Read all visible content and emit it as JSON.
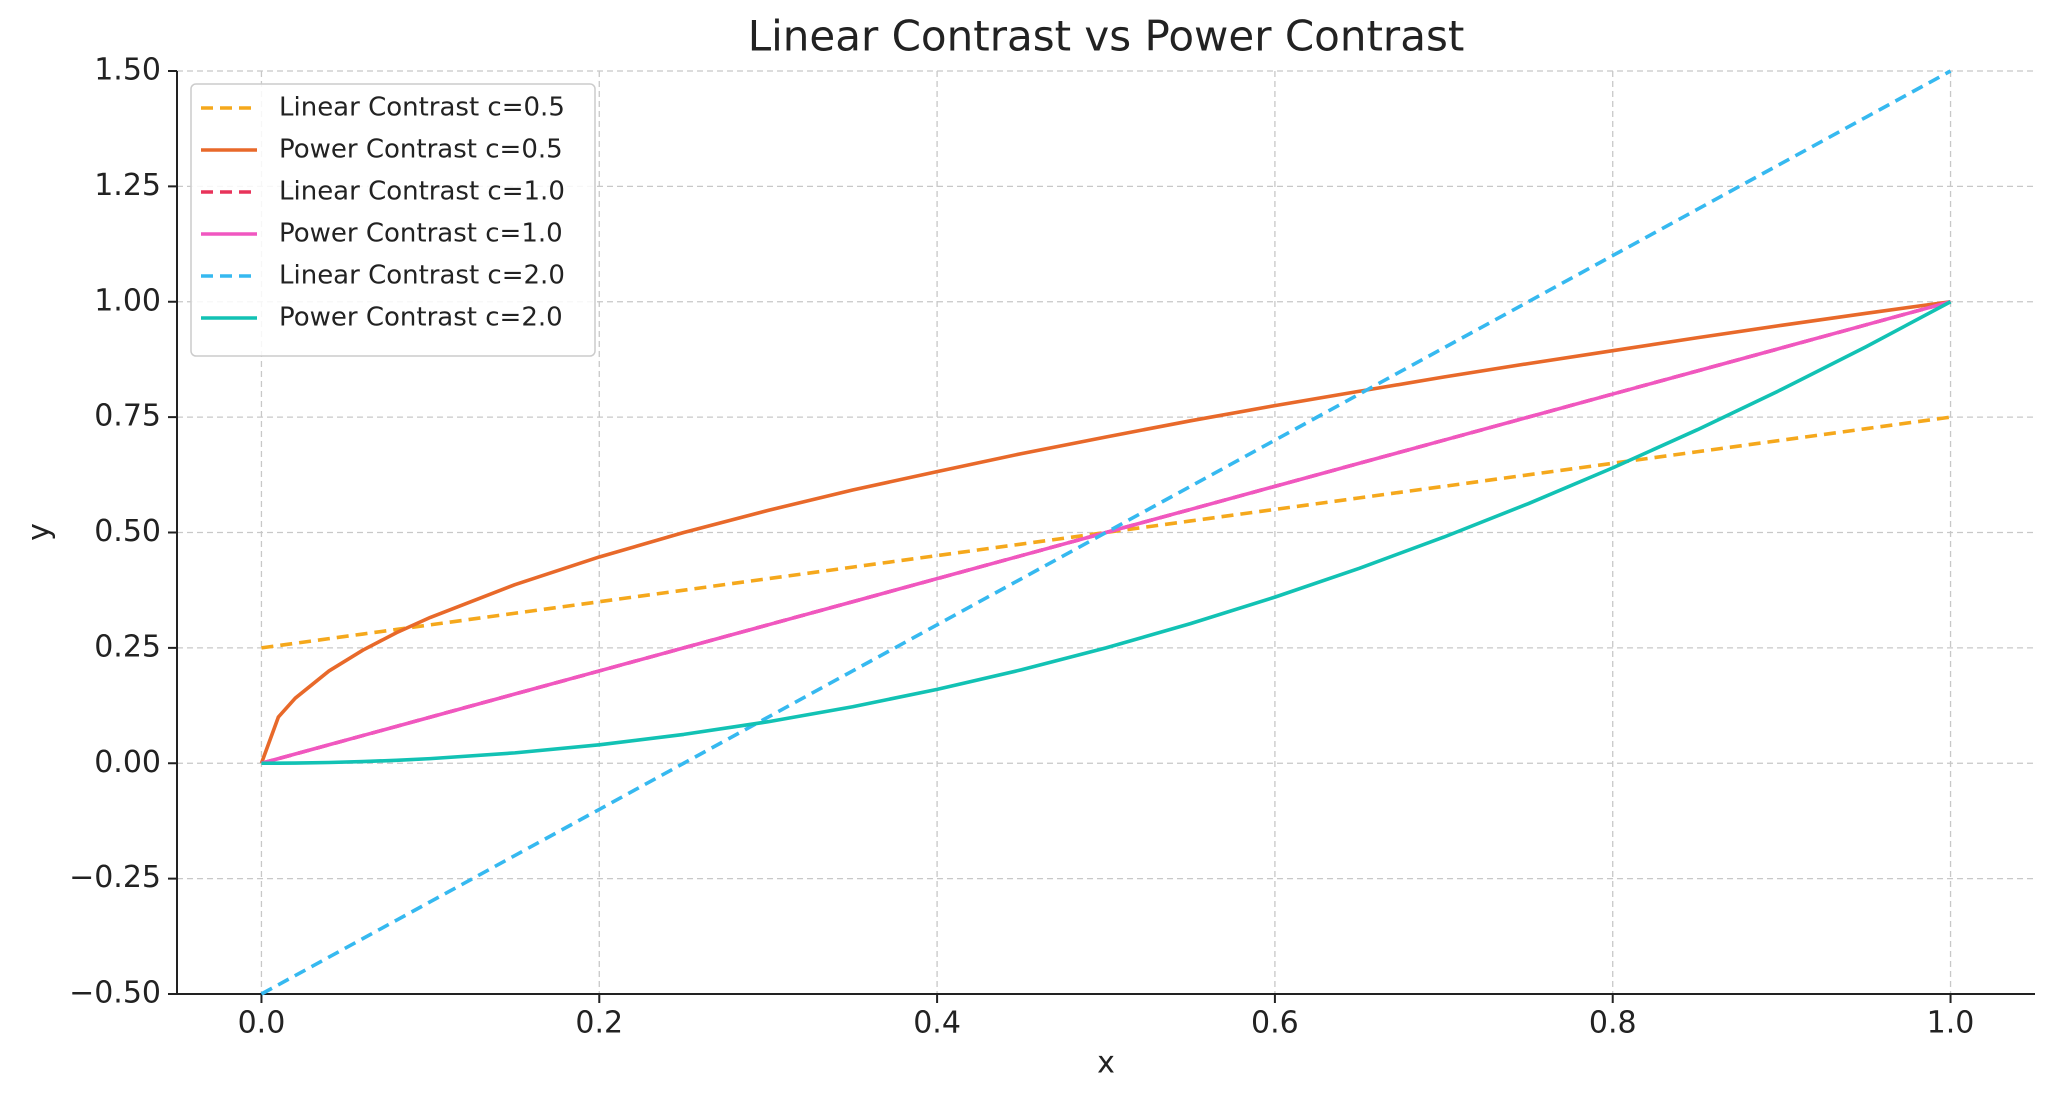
{
  "chart_data": {
    "type": "line",
    "title": "Linear Contrast vs Power Contrast",
    "x_label": "x",
    "y_label": "y",
    "x": [
      0,
      0.01,
      0.02,
      0.04,
      0.06,
      0.08,
      0.1,
      0.15,
      0.2,
      0.25,
      0.3,
      0.35,
      0.4,
      0.45,
      0.5,
      0.55,
      0.6,
      0.65,
      0.7,
      0.75,
      0.8,
      0.85,
      0.9,
      0.95,
      1.0
    ],
    "series": [
      {
        "name": "Linear Contrast c=0.5",
        "color": "#f5a81c",
        "linestyle": "dashed",
        "values": [
          0.25,
          0.255,
          0.26,
          0.27,
          0.28,
          0.29,
          0.3,
          0.325,
          0.35,
          0.375,
          0.4,
          0.425,
          0.45,
          0.475,
          0.5,
          0.525,
          0.55,
          0.575,
          0.6,
          0.625,
          0.65,
          0.675,
          0.7,
          0.725,
          0.75
        ]
      },
      {
        "name": "Power Contrast c=0.5",
        "color": "#e8692a",
        "linestyle": "solid",
        "values": [
          0,
          0.1,
          0.141,
          0.2,
          0.245,
          0.283,
          0.316,
          0.387,
          0.447,
          0.5,
          0.548,
          0.592,
          0.632,
          0.671,
          0.707,
          0.742,
          0.775,
          0.806,
          0.837,
          0.866,
          0.894,
          0.922,
          0.949,
          0.975,
          1
        ]
      },
      {
        "name": "Linear Contrast c=1.0",
        "color": "#e8335a",
        "linestyle": "dashed",
        "values": [
          0,
          0.01,
          0.02,
          0.04,
          0.06,
          0.08,
          0.1,
          0.15,
          0.2,
          0.25,
          0.3,
          0.35,
          0.4,
          0.45,
          0.5,
          0.55,
          0.6,
          0.65,
          0.7,
          0.75,
          0.8,
          0.85,
          0.9,
          0.95,
          1.0
        ]
      },
      {
        "name": "Power Contrast c=1.0",
        "color": "#f057c0",
        "linestyle": "solid",
        "values": [
          0,
          0.01,
          0.02,
          0.04,
          0.06,
          0.08,
          0.1,
          0.15,
          0.2,
          0.25,
          0.3,
          0.35,
          0.4,
          0.45,
          0.5,
          0.55,
          0.6,
          0.65,
          0.7,
          0.75,
          0.8,
          0.85,
          0.9,
          0.95,
          1.0
        ]
      },
      {
        "name": "Linear Contrast c=2.0",
        "color": "#36b9f0",
        "linestyle": "dashed",
        "values": [
          -0.5,
          -0.48,
          -0.46,
          -0.42,
          -0.38,
          -0.34,
          -0.3,
          -0.2,
          -0.1,
          0,
          0.1,
          0.2,
          0.3,
          0.4,
          0.5,
          0.6,
          0.7,
          0.8,
          0.9,
          1.0,
          1.1,
          1.2,
          1.3,
          1.4,
          1.5
        ]
      },
      {
        "name": "Power Contrast c=2.0",
        "color": "#12c2b4",
        "linestyle": "solid",
        "values": [
          0,
          0.0001,
          0.0004,
          0.0016,
          0.0036,
          0.0064,
          0.01,
          0.0225,
          0.04,
          0.0625,
          0.09,
          0.1225,
          0.16,
          0.2025,
          0.25,
          0.3025,
          0.36,
          0.4225,
          0.49,
          0.5625,
          0.64,
          0.7225,
          0.81,
          0.9025,
          1
        ]
      }
    ],
    "xlim": [
      -0.05,
      1.05
    ],
    "xticks": [
      {
        "value": 0,
        "label": "0.0"
      },
      {
        "value": 0.2,
        "label": "0.2"
      },
      {
        "value": 0.4,
        "label": "0.4"
      },
      {
        "value": 0.6,
        "label": "0.6"
      },
      {
        "value": 0.8,
        "label": "0.8"
      },
      {
        "value": 1,
        "label": "1.0"
      }
    ],
    "ylim": [
      -0.5,
      1.5
    ],
    "yticks": [
      {
        "value": -0.5,
        "label": "−0.50"
      },
      {
        "value": -0.25,
        "label": "−0.25"
      },
      {
        "value": 0,
        "label": "0.00"
      },
      {
        "value": 0.25,
        "label": "0.25"
      },
      {
        "value": 0.5,
        "label": "0.50"
      },
      {
        "value": 0.75,
        "label": "0.75"
      },
      {
        "value": 1,
        "label": "1.00"
      },
      {
        "value": 1.25,
        "label": "1.25"
      },
      {
        "value": 1.5,
        "label": "1.50"
      }
    ],
    "grid": true,
    "legend": "upper left"
  }
}
